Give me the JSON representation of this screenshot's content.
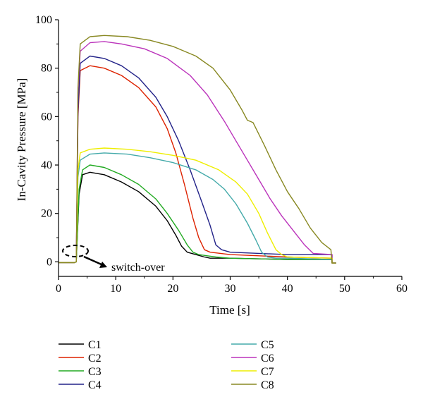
{
  "chart_data": {
    "type": "line",
    "xlabel": "Time [s]",
    "ylabel": "In-Cavity Pressure [MPa]",
    "xlim": [
      0,
      60
    ],
    "ylim": [
      -6,
      100
    ],
    "xticks": [
      0,
      10,
      20,
      30,
      40,
      50,
      60
    ],
    "yticks": [
      0,
      20,
      40,
      60,
      80,
      100
    ],
    "grid": false,
    "legend_position": "bottom",
    "annotation": "switch-over",
    "series": [
      {
        "name": "C1",
        "color": "#000000",
        "x": [
          0,
          2.8,
          3.1,
          3.6,
          4.2,
          5.5,
          8,
          11,
          14,
          17,
          19,
          20.5,
          21.5,
          22.5,
          24,
          25.5,
          26.5,
          30,
          40,
          47.8,
          47.8,
          48.5
        ],
        "y": [
          -0.3,
          -0.3,
          0,
          28,
          36,
          37,
          36,
          33,
          29,
          23,
          17,
          11,
          6.5,
          4,
          3,
          2,
          1.5,
          1.5,
          1,
          1,
          -0.5,
          -0.5
        ]
      },
      {
        "name": "C2",
        "color": "#dd2200",
        "x": [
          0,
          2.8,
          3.1,
          3.4,
          3.8,
          5.5,
          8,
          11,
          14,
          17,
          19,
          20.5,
          22,
          23.5,
          24.5,
          25.5,
          26.5,
          30,
          40,
          47.8,
          47.8,
          48.5
        ],
        "y": [
          -0.3,
          -0.3,
          0,
          60,
          79,
          81,
          80,
          77,
          72,
          64,
          55,
          45,
          32,
          18,
          10,
          5,
          4,
          3,
          2,
          1.5,
          -0.5,
          -0.5
        ]
      },
      {
        "name": "C3",
        "color": "#22aa22",
        "x": [
          0,
          2.8,
          3.1,
          3.6,
          4.2,
          5.5,
          8,
          11,
          14,
          17,
          19,
          21,
          22.5,
          23.5,
          24.5,
          26,
          27.5,
          30,
          40,
          47.8,
          47.8,
          48.5
        ],
        "y": [
          -0.3,
          -0.3,
          0,
          30,
          38,
          40,
          39,
          36,
          32,
          26,
          20,
          13,
          7,
          4,
          3,
          2.5,
          2,
          1.5,
          1,
          1,
          -0.5,
          -0.5
        ]
      },
      {
        "name": "C4",
        "color": "#222288",
        "x": [
          0,
          2.8,
          3.1,
          3.4,
          3.8,
          5.5,
          8,
          11,
          14,
          17,
          19,
          21,
          23,
          25,
          26.5,
          27.5,
          28.5,
          30,
          40,
          47.8,
          47.8,
          48.5
        ],
        "y": [
          -0.3,
          -0.3,
          0,
          62,
          82,
          85,
          84,
          81,
          76,
          68,
          60,
          50,
          38,
          25,
          15,
          7,
          5,
          4,
          3,
          3,
          -0.5,
          -0.5
        ]
      },
      {
        "name": "C5",
        "color": "#44aaaa",
        "x": [
          0,
          2.8,
          3.1,
          3.4,
          3.8,
          5.5,
          8,
          12,
          16,
          20,
          24,
          27,
          29,
          31,
          33,
          34.5,
          35.5,
          36.5,
          38,
          40,
          47.8,
          47.8,
          48.5
        ],
        "y": [
          -0.3,
          -0.3,
          0,
          35,
          42,
          44.5,
          45,
          44.5,
          43,
          41,
          38,
          34,
          30,
          24,
          16,
          9,
          4,
          2,
          1.5,
          1.5,
          1,
          -0.5,
          -0.5
        ]
      },
      {
        "name": "C6",
        "color": "#bb33bb",
        "x": [
          0,
          2.8,
          3.1,
          3.4,
          3.8,
          5.5,
          8,
          11,
          15,
          19,
          23,
          26,
          29,
          31,
          33,
          35,
          37,
          39,
          41,
          43,
          44.5,
          47.8,
          47.8,
          48.5
        ],
        "y": [
          -0.3,
          -0.3,
          0,
          70,
          87,
          90.5,
          91,
          90,
          88,
          84,
          77,
          69,
          58,
          50,
          42,
          34,
          26,
          19,
          13,
          7,
          3.5,
          3,
          -0.5,
          -0.5
        ]
      },
      {
        "name": "C7",
        "color": "#eeee00",
        "x": [
          0,
          2.8,
          3.1,
          3.4,
          3.8,
          5.5,
          8,
          12,
          16,
          20,
          24,
          28,
          31,
          33,
          35,
          36.5,
          38,
          39,
          40,
          47.8,
          47.8,
          48.5
        ],
        "y": [
          -0.3,
          -0.3,
          0,
          38,
          45,
          46.5,
          47,
          46.5,
          45.5,
          44,
          42,
          38,
          33,
          28,
          20,
          12,
          5,
          3,
          2,
          1.5,
          -0.5,
          -0.5
        ]
      },
      {
        "name": "C8",
        "color": "#888822",
        "x": [
          0,
          2.8,
          3.1,
          3.4,
          3.8,
          5.5,
          8,
          12,
          16,
          20,
          24,
          27,
          30,
          32,
          33,
          34,
          36,
          38,
          40,
          42,
          44,
          46,
          47.6,
          47.8,
          48.5
        ],
        "y": [
          -0.3,
          -0.3,
          0,
          72,
          90,
          93,
          93.5,
          93,
          91.5,
          89,
          85,
          80,
          71,
          63,
          58.5,
          57.5,
          48,
          38,
          29,
          22,
          14,
          8,
          5,
          -0.5,
          -0.5
        ]
      }
    ]
  }
}
